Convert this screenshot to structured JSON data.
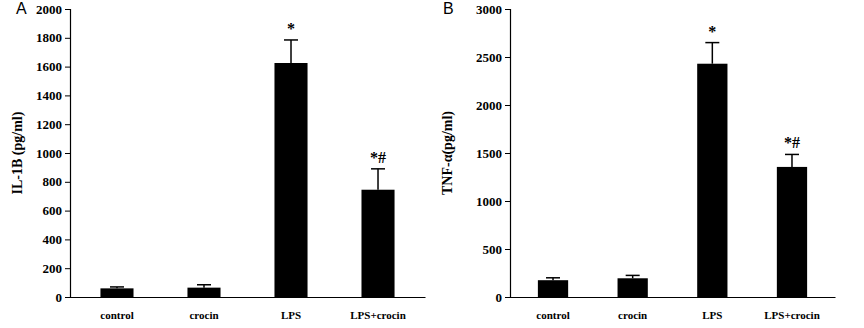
{
  "chart_data": [
    {
      "type": "bar",
      "title": "A",
      "y_label": "IL-1B (pg/ml)",
      "categories": [
        "control",
        "crocin",
        "LPS",
        "LPS+crocin"
      ],
      "values": [
        60,
        65,
        1625,
        745
      ],
      "errors": [
        10,
        20,
        160,
        145
      ],
      "color": "#000000",
      "ylim": [
        0,
        2000
      ],
      "yticks": [
        0,
        200,
        400,
        600,
        800,
        1000,
        1200,
        1400,
        1600,
        1800,
        2000
      ],
      "annotations": [
        {
          "category": "LPS",
          "text": "*"
        },
        {
          "category": "LPS+crocin",
          "text": "*#"
        }
      ]
    },
    {
      "type": "bar",
      "title": "B",
      "y_label": "TNF-α(pg/ml)",
      "categories": [
        "control",
        "crocin",
        "LPS",
        "LPS+crocin"
      ],
      "values": [
        175,
        195,
        2430,
        1355
      ],
      "errors": [
        25,
        30,
        220,
        130
      ],
      "color": "#000000",
      "ylim": [
        0,
        3000
      ],
      "yticks": [
        0,
        500,
        1000,
        1500,
        2000,
        2500,
        3000
      ],
      "annotations": [
        {
          "category": "LPS",
          "text": "*"
        },
        {
          "category": "LPS+crocin",
          "text": "*#"
        }
      ]
    }
  ]
}
